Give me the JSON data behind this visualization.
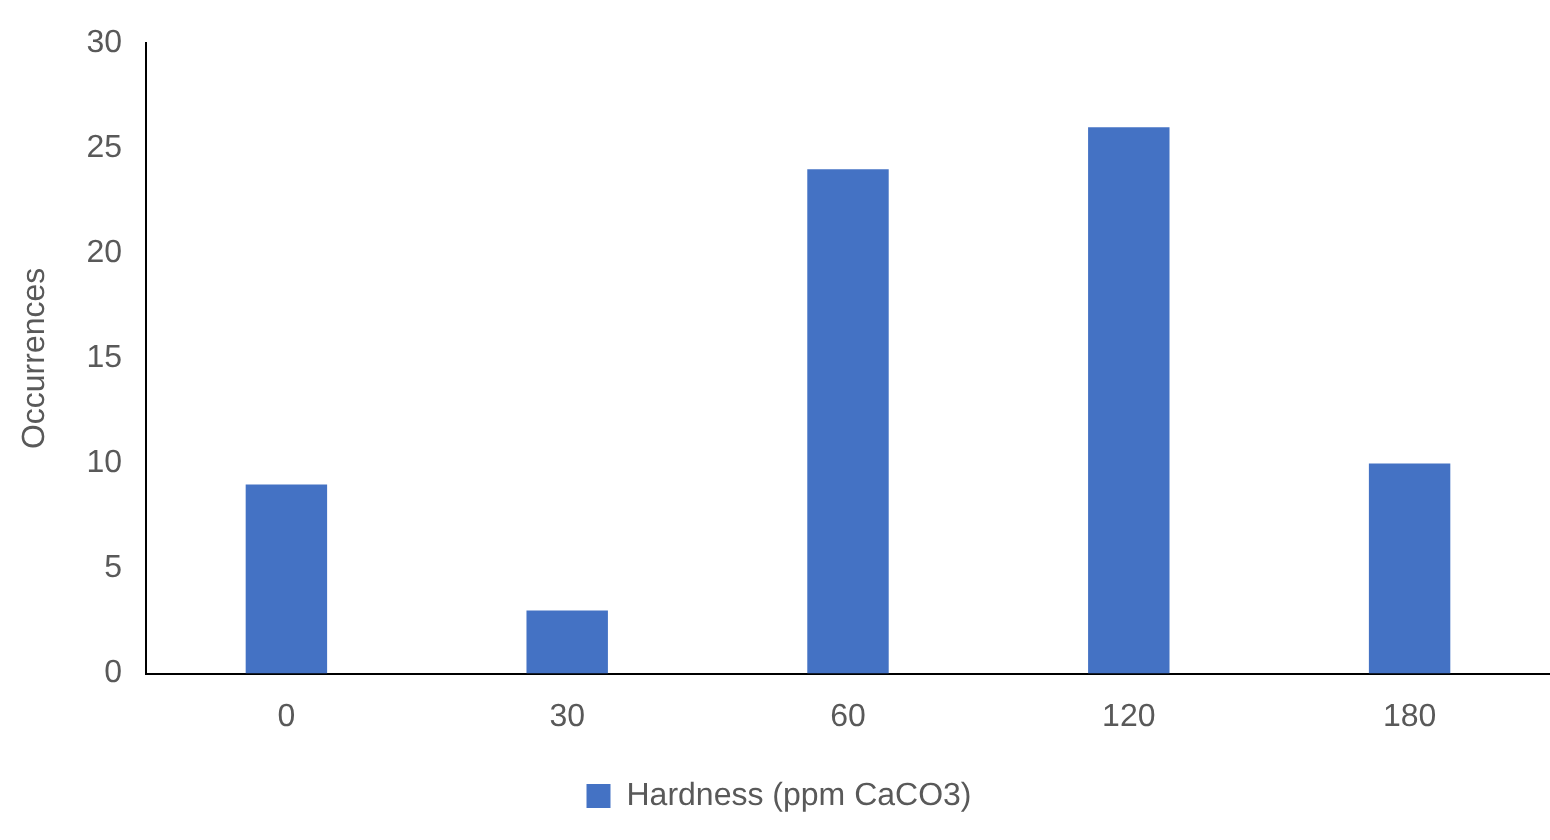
{
  "chart_data": {
    "type": "bar",
    "ylabel": "Occurrences",
    "categories": [
      "0",
      "30",
      "60",
      "120",
      "180"
    ],
    "series": [
      {
        "name": "Hardness (ppm CaCO3)",
        "color": "#4472c4",
        "values": [
          9,
          3,
          24,
          26,
          10
        ]
      }
    ],
    "ylim": [
      0,
      30
    ],
    "yticks": [
      0,
      5,
      10,
      15,
      20,
      25,
      30
    ],
    "grid": false,
    "legend": "bottom"
  }
}
